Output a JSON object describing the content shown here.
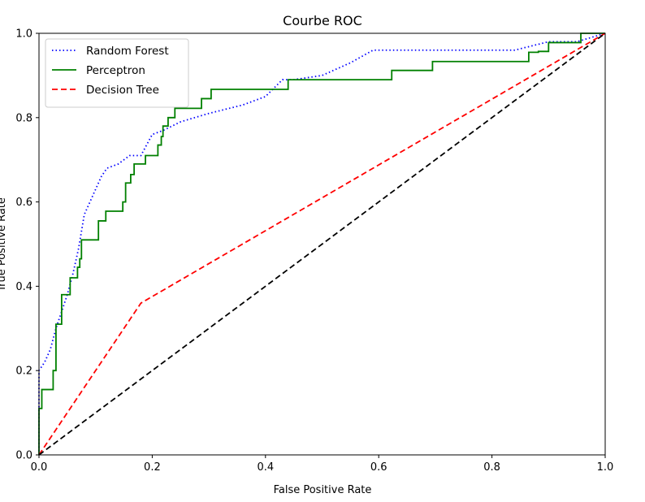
{
  "chart_data": {
    "type": "line",
    "title": "Courbe ROC",
    "xlabel": "False Positive Rate",
    "ylabel": "True Positive Rate",
    "xlim": [
      0.0,
      1.0
    ],
    "ylim": [
      0.0,
      1.0
    ],
    "xticks": [
      "0.0",
      "0.2",
      "0.4",
      "0.6",
      "0.8",
      "1.0"
    ],
    "yticks": [
      "0.0",
      "0.2",
      "0.4",
      "0.6",
      "0.8",
      "1.0"
    ],
    "grid": false,
    "legend_position": "top-left",
    "series": [
      {
        "name": "Random Forest",
        "color": "#0000ff",
        "style": "dotted",
        "x": [
          0.0,
          0.0,
          0.01,
          0.02,
          0.03,
          0.04,
          0.05,
          0.06,
          0.07,
          0.08,
          0.09,
          0.1,
          0.11,
          0.12,
          0.14,
          0.16,
          0.18,
          0.2,
          0.22,
          0.25,
          0.3,
          0.33,
          0.36,
          0.4,
          0.43,
          0.45,
          0.5,
          0.55,
          0.59,
          0.7,
          0.84,
          0.9,
          0.95,
          1.0
        ],
        "y": [
          0.0,
          0.2,
          0.22,
          0.25,
          0.3,
          0.34,
          0.38,
          0.43,
          0.49,
          0.57,
          0.6,
          0.63,
          0.66,
          0.68,
          0.69,
          0.71,
          0.71,
          0.76,
          0.77,
          0.79,
          0.81,
          0.82,
          0.83,
          0.85,
          0.89,
          0.89,
          0.9,
          0.93,
          0.96,
          0.96,
          0.96,
          0.98,
          0.98,
          1.0
        ]
      },
      {
        "name": "Perceptron",
        "color": "#008000",
        "style": "solid",
        "x": [
          0.0,
          0.0,
          0.005,
          0.005,
          0.025,
          0.025,
          0.03,
          0.03,
          0.04,
          0.04,
          0.055,
          0.055,
          0.068,
          0.068,
          0.072,
          0.072,
          0.075,
          0.075,
          0.105,
          0.105,
          0.118,
          0.118,
          0.148,
          0.148,
          0.153,
          0.153,
          0.162,
          0.162,
          0.168,
          0.168,
          0.188,
          0.188,
          0.21,
          0.21,
          0.216,
          0.216,
          0.219,
          0.219,
          0.228,
          0.228,
          0.24,
          0.24,
          0.287,
          0.287,
          0.304,
          0.304,
          0.44,
          0.44,
          0.623,
          0.623,
          0.695,
          0.695,
          0.865,
          0.865,
          0.882,
          0.882,
          0.9,
          0.9,
          0.957,
          0.957,
          1.0
        ],
        "y": [
          0.0,
          0.11,
          0.11,
          0.155,
          0.155,
          0.2,
          0.2,
          0.31,
          0.31,
          0.38,
          0.38,
          0.42,
          0.42,
          0.445,
          0.445,
          0.465,
          0.465,
          0.51,
          0.51,
          0.555,
          0.555,
          0.578,
          0.578,
          0.6,
          0.6,
          0.645,
          0.645,
          0.665,
          0.665,
          0.69,
          0.69,
          0.71,
          0.71,
          0.735,
          0.735,
          0.755,
          0.755,
          0.78,
          0.78,
          0.8,
          0.8,
          0.822,
          0.822,
          0.845,
          0.845,
          0.867,
          0.867,
          0.89,
          0.89,
          0.912,
          0.912,
          0.933,
          0.933,
          0.955,
          0.955,
          0.957,
          0.957,
          0.978,
          0.978,
          1.0,
          1.0
        ]
      },
      {
        "name": "Decision Tree",
        "color": "#ff0000",
        "style": "dashed",
        "x": [
          0.0,
          0.18,
          1.0
        ],
        "y": [
          0.0,
          0.36,
          1.0
        ]
      },
      {
        "color": "#000000",
        "style": "dashed",
        "x": [
          0.0,
          1.0
        ],
        "y": [
          0.0,
          1.0
        ]
      }
    ]
  }
}
